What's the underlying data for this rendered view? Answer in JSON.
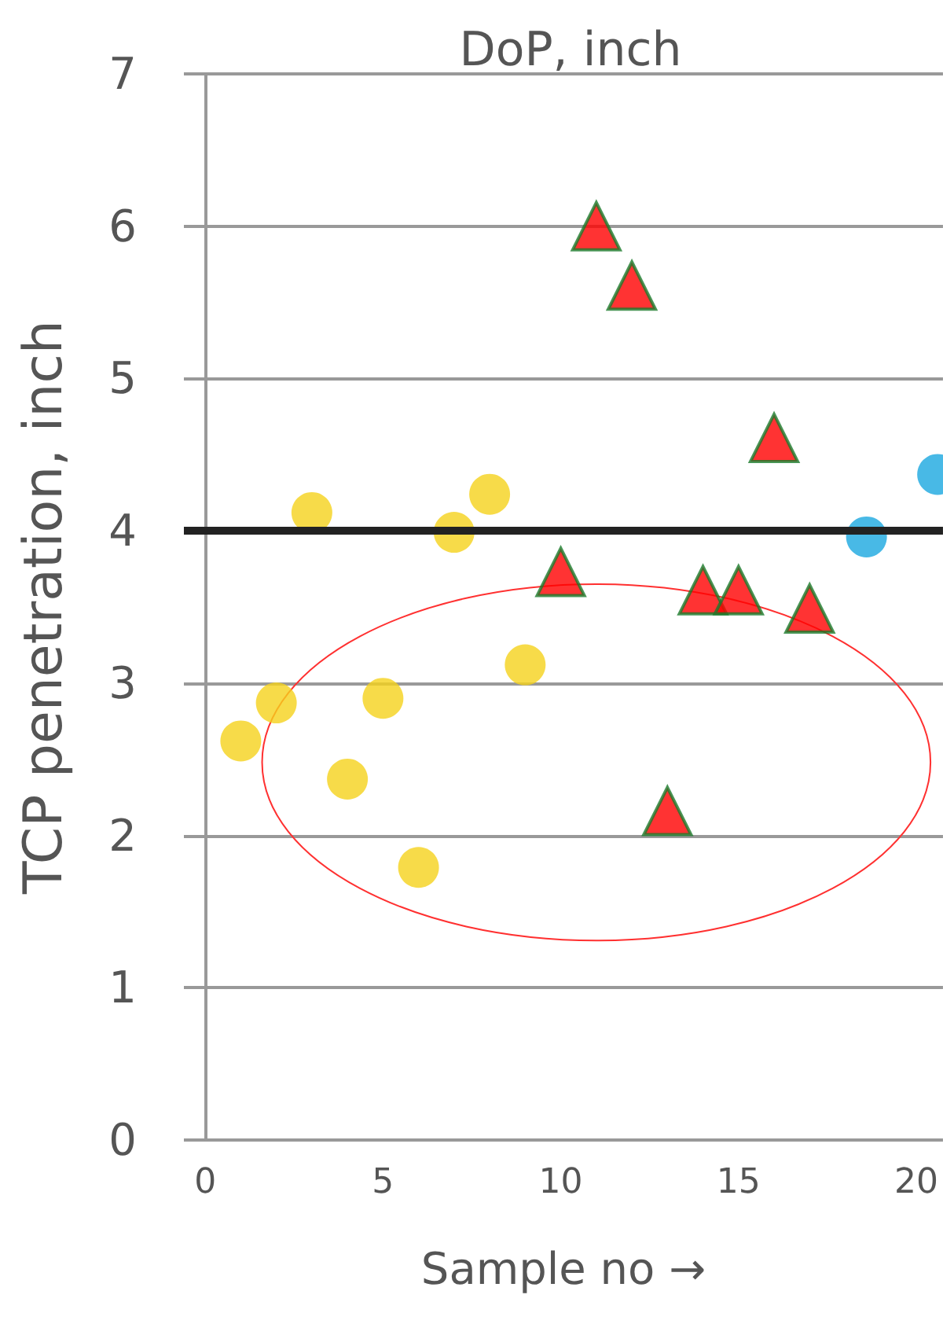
{
  "chart_data": {
    "type": "scatter",
    "title": "DoP, inch",
    "xlabel": "Sample no →",
    "ylabel": "TCP penetration, inch",
    "series": [
      {
        "color": "#f5d21c",
        "marker": "circle",
        "x": [
          1,
          2,
          3,
          4,
          5,
          6,
          7,
          8,
          9
        ],
        "values": [
          2.62,
          2.87,
          4.12,
          2.37,
          2.9,
          1.79,
          3.99,
          4.24,
          3.12
        ]
      },
      {
        "color": "#ff0000",
        "marker": "triangle",
        "x": [
          10,
          11,
          12,
          13,
          14,
          15,
          16,
          17
        ],
        "values": [
          3.73,
          6.0,
          5.61,
          2.16,
          3.61,
          3.61,
          4.61,
          3.49
        ]
      },
      {
        "color": "#1aa7e0",
        "marker": "circle",
        "x": [
          18.6,
          20.6
        ],
        "values": [
          3.96,
          4.37
        ]
      }
    ],
    "xlim": [
      -0.6,
      20.75
    ],
    "xticks": [
      0,
      5,
      10,
      15,
      20
    ],
    "ylim": [
      0,
      7
    ],
    "yticks": [
      0,
      1,
      2,
      3,
      4,
      5,
      6,
      7
    ],
    "grid": "y",
    "ref_lines": [
      {
        "axis": "y",
        "value": 4,
        "color": "#222222"
      }
    ]
  }
}
